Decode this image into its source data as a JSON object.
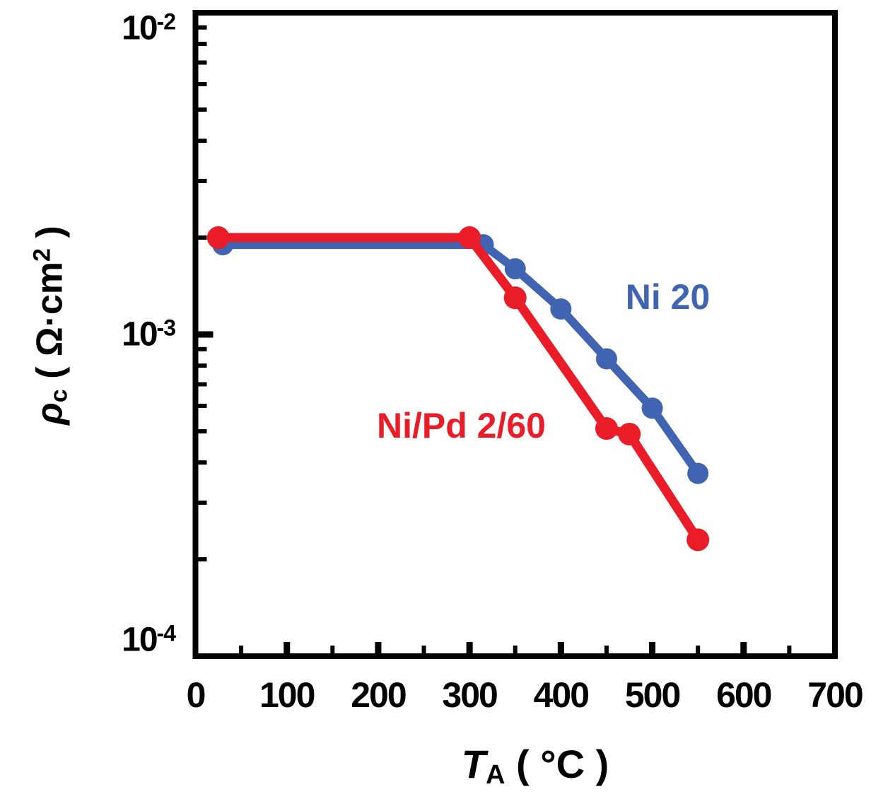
{
  "figure": {
    "background": "#ffffff",
    "axis_color": "#000000"
  },
  "x_axis": {
    "title": {
      "t": "T",
      "sub": "A",
      "rest": " ( °C )"
    },
    "range": [
      0,
      700
    ],
    "tick_labels": [
      {
        "text": "0",
        "value": 0
      },
      {
        "text": "100",
        "value": 100
      },
      {
        "text": "200",
        "value": 200
      },
      {
        "text": "300",
        "value": 300
      },
      {
        "text": "400",
        "value": 400
      },
      {
        "text": "500",
        "value": 500
      },
      {
        "text": "600",
        "value": 600
      },
      {
        "text": "700",
        "value": 700
      }
    ],
    "minor_tick_step": 50
  },
  "y_axis": {
    "title": {
      "rho": "ρ",
      "sub": "c",
      "mid": " ( Ω·cm",
      "sup": "2",
      "end": " )"
    },
    "scale": "log",
    "range": [
      0.0001,
      0.01
    ],
    "tick_labels": [
      {
        "base": "10",
        "exp": "-2",
        "value": 0.01
      },
      {
        "base": "10",
        "exp": "-3",
        "value": 0.001
      },
      {
        "base": "10",
        "exp": "-4",
        "value": 0.0001
      }
    ]
  },
  "chart_data": {
    "type": "line",
    "xlabel": "T_A ( °C )",
    "ylabel": "rho_c ( Ohm·cm^2 )",
    "x_range": [
      0,
      700
    ],
    "y_range": [
      0.0001,
      0.01
    ],
    "y_scale": "log",
    "grid": false,
    "legend_position": "inline-annotations",
    "series": [
      {
        "name": "Ni 20",
        "color": "#4064b2",
        "marker": "circle",
        "x": [
          30,
          315,
          350,
          400,
          450,
          500,
          550
        ],
        "y": [
          0.0019,
          0.0019,
          0.0016,
          0.0012,
          0.00084,
          0.00059,
          0.00037
        ]
      },
      {
        "name": "Ni/Pd 2/60",
        "color": "#ea1c27",
        "marker": "circle",
        "x": [
          25,
          300,
          350,
          450,
          475,
          550
        ],
        "y": [
          0.002,
          0.002,
          0.0013,
          0.00051,
          0.00049,
          0.00023
        ]
      }
    ],
    "annotations": [
      {
        "text": "Ni 20",
        "x": 517,
        "y": 0.00131,
        "color": "#4064b2"
      },
      {
        "text": "Ni/Pd 2/60",
        "x": 291,
        "y": 0.00052,
        "color": "#ea1c27"
      }
    ]
  }
}
